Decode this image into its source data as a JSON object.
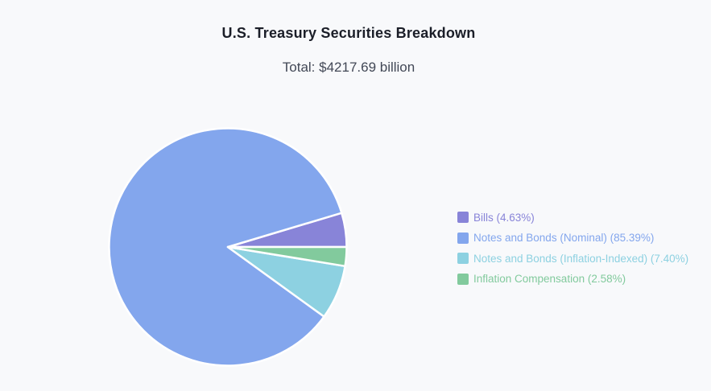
{
  "title": "U.S. Treasury Securities Breakdown",
  "subtitle": "Total: $4217.69 billion",
  "colors": {
    "background": "#f8f9fb",
    "title_text": "#1b1e28",
    "subtitle_text": "#424856",
    "slice_border": "#ffffff"
  },
  "chart_data": {
    "type": "pie",
    "title": "U.S. Treasury Securities Breakdown",
    "subtitle": "Total: $4217.69 billion",
    "total_billion_usd": 4217.69,
    "start_angle_deg": 0,
    "direction": "counterclockwise",
    "legend_position": "right",
    "series": [
      {
        "name": "Bills",
        "percent": 4.63,
        "color": "#8884d8",
        "legend_label": "Bills (4.63%)"
      },
      {
        "name": "Notes and Bonds (Nominal)",
        "percent": 85.39,
        "color": "#83a6ed",
        "legend_label": "Notes and Bonds (Nominal) (85.39%)"
      },
      {
        "name": "Notes and Bonds (Inflation-Indexed)",
        "percent": 7.4,
        "color": "#8dd1e1",
        "legend_label": "Notes and Bonds (Inflation-Indexed) (7.40%)"
      },
      {
        "name": "Inflation Compensation",
        "percent": 2.58,
        "color": "#82ca9d",
        "legend_label": "Inflation Compensation (2.58%)"
      }
    ]
  }
}
